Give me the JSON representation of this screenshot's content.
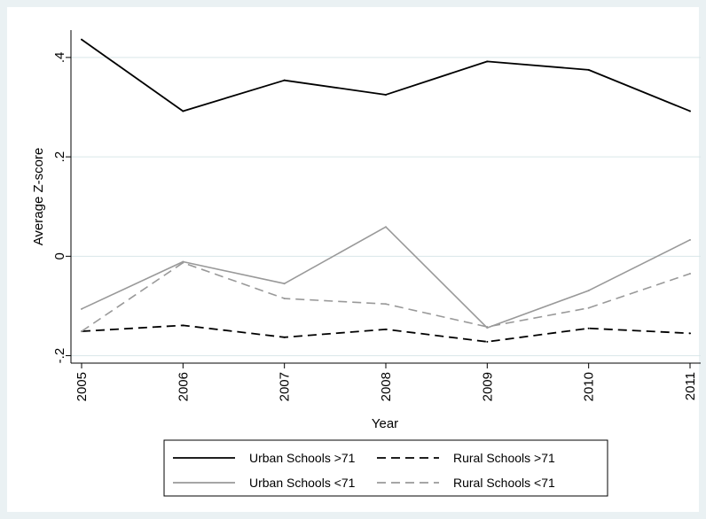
{
  "chart_data": {
    "type": "line",
    "title": "",
    "xlabel": "Year",
    "ylabel": "Average Z-score",
    "x": [
      "2005",
      "2006",
      "2007",
      "2008",
      "2009",
      "2010",
      "2011"
    ],
    "xtick_labels": [
      "2005",
      "2006",
      "2007",
      "2008",
      "2009",
      "2010",
      "2011"
    ],
    "ytick_values": [
      -0.2,
      0,
      0.2,
      0.4
    ],
    "ytick_labels": [
      "-.2",
      "0",
      ".2",
      ".4"
    ],
    "ylim": [
      -0.215,
      0.455
    ],
    "grid": true,
    "legend_position": "bottom",
    "series": [
      {
        "name": "Urban Schools >71",
        "color": "#000000",
        "dash": "solid",
        "values": [
          0.436,
          0.292,
          0.354,
          0.325,
          0.392,
          0.375,
          0.292
        ]
      },
      {
        "name": "Rural Schools >71",
        "color": "#000000",
        "dash": "dashed",
        "values": [
          -0.151,
          -0.139,
          -0.163,
          -0.147,
          -0.172,
          -0.145,
          -0.155
        ]
      },
      {
        "name": "Urban Schools <71",
        "color": "#999999",
        "dash": "solid",
        "values": [
          -0.106,
          -0.011,
          -0.055,
          0.059,
          -0.144,
          -0.069,
          0.033
        ]
      },
      {
        "name": "Rural Schools <71",
        "color": "#999999",
        "dash": "dashed",
        "values": [
          -0.151,
          -0.013,
          -0.085,
          -0.096,
          -0.142,
          -0.104,
          -0.035
        ]
      }
    ]
  }
}
